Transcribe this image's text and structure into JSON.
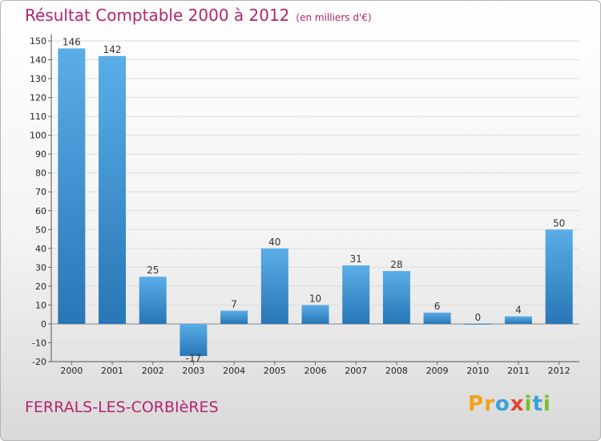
{
  "header": {
    "title": "Résultat Comptable 2000 à 2012",
    "subtitle": "(en milliers d'€)"
  },
  "footer": {
    "commune": "FERRALS-LES-CORBIèRES",
    "logo": "Proxiti"
  },
  "chart_data": {
    "type": "bar",
    "title": "Résultat Comptable 2000 à 2012",
    "subtitle": "(en milliers d'€)",
    "xlabel": "",
    "ylabel": "",
    "categories": [
      "2000",
      "2001",
      "2002",
      "2003",
      "2004",
      "2005",
      "2006",
      "2007",
      "2008",
      "2009",
      "2010",
      "2011",
      "2012"
    ],
    "values": [
      146,
      142,
      25,
      -17,
      7,
      40,
      10,
      31,
      28,
      6,
      0,
      4,
      50
    ],
    "ylim": [
      -20,
      150
    ],
    "yticks": [
      -20,
      -10,
      0,
      10,
      20,
      30,
      40,
      50,
      60,
      70,
      80,
      90,
      100,
      110,
      120,
      130,
      140,
      150
    ],
    "grid": true,
    "bar_color": "#3f97d6"
  }
}
